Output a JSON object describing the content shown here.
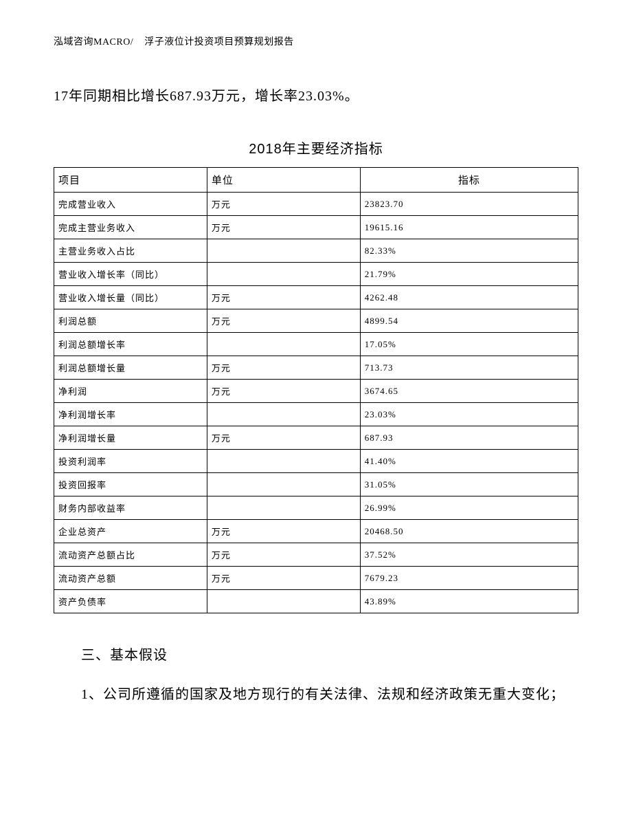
{
  "header": {
    "left": "泓域咨询MACRO/",
    "right": "浮子液位计投资项目预算规划报告"
  },
  "top_paragraph": "17年同期相比增长687.93万元，增长率23.03%。",
  "table_title": "2018年主要经济指标",
  "table": {
    "columns": [
      "项目",
      "单位",
      "指标"
    ],
    "col_widths_pct": [
      29,
      29,
      42
    ],
    "header_fontsize": 15,
    "cell_fontsize": 13,
    "border_color": "#000000",
    "rows": [
      {
        "item": "完成营业收入",
        "unit": "万元",
        "value": "23823.70"
      },
      {
        "item": "完成主营业务收入",
        "unit": "万元",
        "value": "19615.16"
      },
      {
        "item": "主营业务收入占比",
        "unit": "",
        "value": "82.33%"
      },
      {
        "item": "营业收入增长率（同比）",
        "unit": "",
        "value": "21.79%"
      },
      {
        "item": "营业收入增长量（同比）",
        "unit": "万元",
        "value": "4262.48"
      },
      {
        "item": "利润总额",
        "unit": "万元",
        "value": "4899.54"
      },
      {
        "item": "利润总额增长率",
        "unit": "",
        "value": "17.05%"
      },
      {
        "item": "利润总额增长量",
        "unit": "万元",
        "value": "713.73"
      },
      {
        "item": "净利润",
        "unit": "万元",
        "value": "3674.65"
      },
      {
        "item": "净利润增长率",
        "unit": "",
        "value": "23.03%"
      },
      {
        "item": "净利润增长量",
        "unit": "万元",
        "value": "687.93"
      },
      {
        "item": "投资利润率",
        "unit": "",
        "value": "41.40%"
      },
      {
        "item": "投资回报率",
        "unit": "",
        "value": "31.05%"
      },
      {
        "item": "财务内部收益率",
        "unit": "",
        "value": "26.99%"
      },
      {
        "item": "企业总资产",
        "unit": "万元",
        "value": "20468.50"
      },
      {
        "item": "流动资产总额占比",
        "unit": "万元",
        "value": "37.52%"
      },
      {
        "item": "流动资产总额",
        "unit": "万元",
        "value": "7679.23"
      },
      {
        "item": "资产负债率",
        "unit": "",
        "value": "43.89%"
      }
    ]
  },
  "section_heading": "三、基本假设",
  "paragraph_1": "1、公司所遵循的国家及地方现行的有关法律、法规和经济政策无重大变化；"
}
